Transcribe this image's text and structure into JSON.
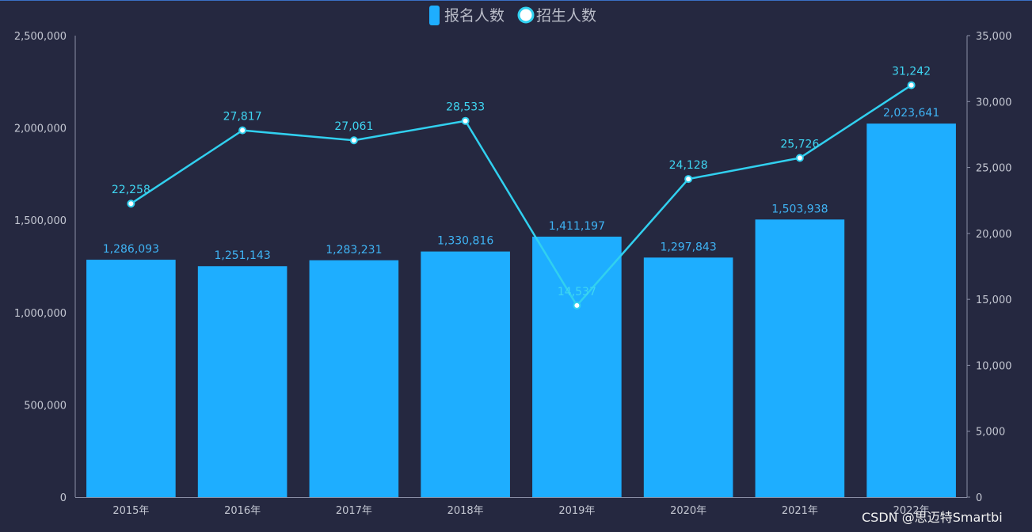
{
  "chart_data": {
    "type": "bar",
    "categories": [
      "2015年",
      "2016年",
      "2017年",
      "2018年",
      "2019年",
      "2020年",
      "2021年",
      "2022年"
    ],
    "series": [
      {
        "name": "报名人数",
        "type": "bar",
        "axis": "left",
        "values": [
          1286093,
          1251143,
          1283231,
          1330816,
          1411197,
          1297843,
          1503938,
          2023641
        ],
        "labels": [
          "1,286,093",
          "1,251,143",
          "1,283,231",
          "1,330,816",
          "1,411,197",
          "1,297,843",
          "1,503,938",
          "2,023,641"
        ]
      },
      {
        "name": "招生人数",
        "type": "line",
        "axis": "right",
        "values": [
          22258,
          27817,
          27061,
          28533,
          14537,
          24128,
          25726,
          31242
        ],
        "labels": [
          "22,258",
          "27,817",
          "27,061",
          "28,533",
          "14,537",
          "24,128",
          "25,726",
          "31,242"
        ]
      }
    ],
    "y_left": {
      "ylim": [
        0,
        2500000
      ],
      "ticks": [
        0,
        500000,
        1000000,
        1500000,
        2000000,
        2500000
      ],
      "tick_labels": [
        "0",
        "500,000",
        "1,000,000",
        "1,500,000",
        "2,000,000",
        "2,500,000"
      ]
    },
    "y_right": {
      "ylim": [
        0,
        35000
      ],
      "ticks": [
        0,
        5000,
        10000,
        15000,
        20000,
        25000,
        30000,
        35000
      ],
      "tick_labels": [
        "0",
        "5,000",
        "10,000",
        "15,000",
        "20,000",
        "25,000",
        "30,000",
        "35,000"
      ]
    },
    "legend": {
      "position": "top-center",
      "entries": [
        "报名人数",
        "招生人数"
      ]
    },
    "grid": false
  },
  "colors": {
    "background": "#252840",
    "bar": "#1eaeff",
    "line": "#31d0ef",
    "axis": "#8a8fa6"
  },
  "watermark": "CSDN @思迈特Smartbi"
}
